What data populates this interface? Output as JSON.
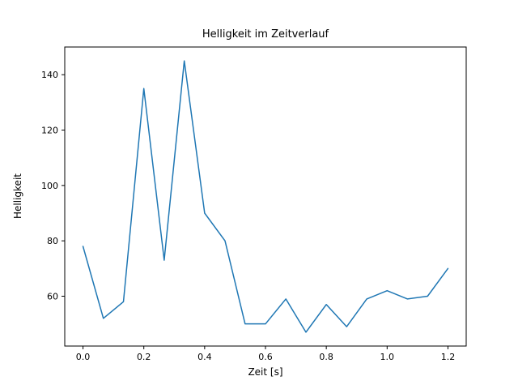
{
  "figure": {
    "background": "#ffffff"
  },
  "chart_data": {
    "type": "line",
    "title": "Helligkeit im Zeitverlauf",
    "xlabel": "Zeit [s]",
    "ylabel": "Helligkeit",
    "line_color": "#1f77b4",
    "grid": false,
    "legend": "none",
    "xlim": [
      -0.06,
      1.26
    ],
    "ylim": [
      42,
      150
    ],
    "x": [
      0.0,
      0.067,
      0.133,
      0.2,
      0.267,
      0.333,
      0.4,
      0.467,
      0.533,
      0.6,
      0.667,
      0.733,
      0.8,
      0.867,
      0.933,
      1.0,
      1.067,
      1.133,
      1.2
    ],
    "y": [
      78,
      52,
      58,
      135,
      73,
      145,
      90,
      80,
      50,
      50,
      59,
      47,
      57,
      49,
      59,
      62,
      59,
      60,
      70
    ],
    "xticks": [
      {
        "value": 0.0,
        "label": "0.0"
      },
      {
        "value": 0.2,
        "label": "0.2"
      },
      {
        "value": 0.4,
        "label": "0.4"
      },
      {
        "value": 0.6,
        "label": "0.6"
      },
      {
        "value": 0.8,
        "label": "0.8"
      },
      {
        "value": 1.0,
        "label": "1.0"
      },
      {
        "value": 1.2,
        "label": "1.2"
      }
    ],
    "yticks": [
      {
        "value": 60,
        "label": "60"
      },
      {
        "value": 80,
        "label": "80"
      },
      {
        "value": 100,
        "label": "100"
      },
      {
        "value": 120,
        "label": "120"
      },
      {
        "value": 140,
        "label": "140"
      }
    ]
  }
}
